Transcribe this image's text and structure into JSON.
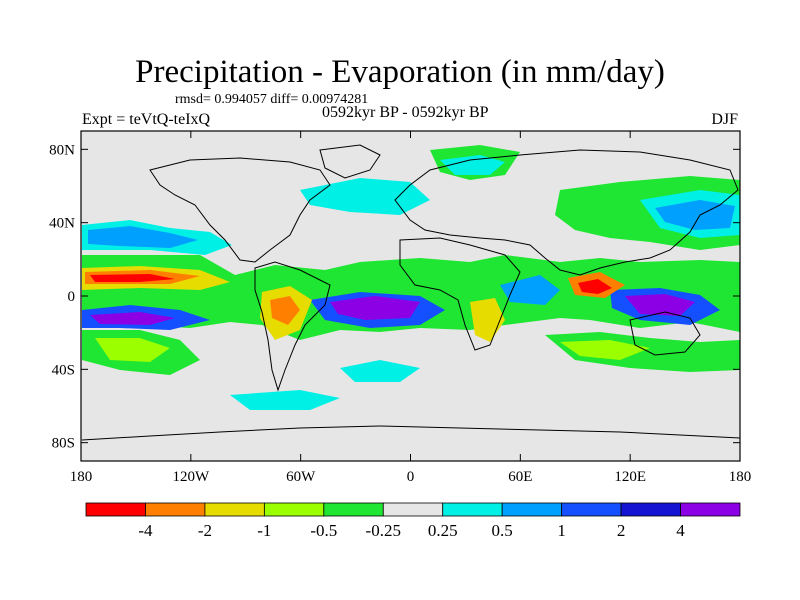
{
  "title": "Precipitation - Evaporation (in mm/day)",
  "stats": "rmsd= 0.994057 diff= 0.00974281",
  "experiment": "Expt = teVtQ-teIxQ",
  "period": "0592kyr BP - 0592kyr BP",
  "season": "DJF",
  "map": {
    "projection": "cylindrical equidistant",
    "lon_range": [
      -180,
      180
    ],
    "lat_range": [
      -90,
      90
    ],
    "lon_ticks": [
      {
        "value": -180,
        "label": "180"
      },
      {
        "value": -120,
        "label": "120W"
      },
      {
        "value": -60,
        "label": "60W"
      },
      {
        "value": 0,
        "label": "0"
      },
      {
        "value": 60,
        "label": "60E"
      },
      {
        "value": 120,
        "label": "120E"
      },
      {
        "value": 180,
        "label": "180"
      }
    ],
    "lat_ticks": [
      {
        "value": 80,
        "label": "80N"
      },
      {
        "value": 40,
        "label": "40N"
      },
      {
        "value": 0,
        "label": "0"
      },
      {
        "value": -40,
        "label": "40S"
      },
      {
        "value": -80,
        "label": "80S"
      }
    ],
    "background_color": "#e6e6e6"
  },
  "colorbar": {
    "boundaries": [
      "-4",
      "-2",
      "-1",
      "-0.5",
      "-0.25",
      "0.25",
      "0.5",
      "1",
      "2",
      "4"
    ],
    "colors": [
      "#ff0000",
      "#ff8000",
      "#e6dc00",
      "#9bff00",
      "#1ee632",
      "#e6e6e6",
      "#00f0e6",
      "#00a0ff",
      "#1450ff",
      "#1414d2",
      "#8c00e6"
    ]
  }
}
